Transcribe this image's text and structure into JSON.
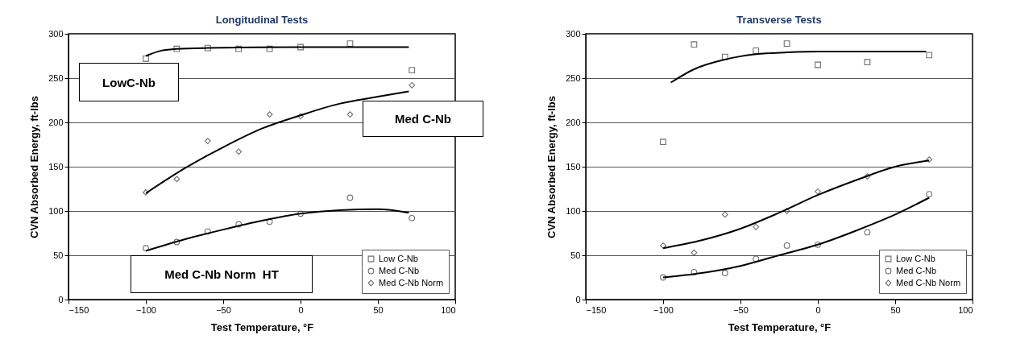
{
  "chart_data": [
    {
      "type": "scatter",
      "title": "Longitudinal Tests",
      "xlabel": "Test Temperature, °F",
      "ylabel": "CVN Absorbed Energy, ft-lbs",
      "xlim": [
        -150,
        100
      ],
      "xticks": [
        -150,
        -100,
        -50,
        0,
        50,
        100
      ],
      "ylim": [
        0,
        300
      ],
      "yticks": [
        0,
        50,
        100,
        150,
        200,
        250,
        300
      ],
      "grid": "y",
      "legend": "bottom right",
      "annotations": [
        "LowC-Nb",
        "Med C-Nb",
        "Med C-Nb Norm  HT"
      ],
      "series": [
        {
          "name": "Low C-Nb",
          "color": "#333333",
          "marker": "square",
          "x": [
            -100,
            -80,
            -60,
            -40,
            -20,
            0,
            32,
            72
          ],
          "values": [
            272,
            283,
            284,
            283,
            283,
            285,
            289,
            259
          ]
        },
        {
          "name": "Med C-Nb",
          "color": "#333333",
          "marker": "circle",
          "x": [
            -100,
            -80,
            -60,
            -40,
            -20,
            0,
            32,
            72
          ],
          "values": [
            58,
            65,
            77,
            85,
            88,
            97,
            115,
            92
          ]
        },
        {
          "name": "Med C-Nb Norm",
          "color": "#333333",
          "marker": "diamond",
          "x": [
            -100,
            -80,
            -60,
            -40,
            -20,
            0,
            32,
            72
          ],
          "values": [
            121,
            136,
            179,
            167,
            209,
            207,
            209,
            242
          ]
        },
        {
          "type": "line",
          "color": "#000000",
          "x": [
            -100,
            -90,
            -80,
            -60,
            0,
            70
          ],
          "values": [
            275,
            281,
            283,
            284,
            285,
            285
          ]
        },
        {
          "type": "line",
          "color": "#000000",
          "x": [
            -100,
            -75,
            -50,
            -25,
            0,
            25,
            50,
            70
          ],
          "values": [
            55,
            68,
            79,
            89,
            97,
            101,
            102,
            98
          ]
        },
        {
          "type": "line",
          "color": "#000000",
          "x": [
            -100,
            -75,
            -50,
            -25,
            0,
            25,
            50,
            70
          ],
          "values": [
            120,
            148,
            172,
            193,
            208,
            221,
            229,
            235
          ]
        }
      ]
    },
    {
      "type": "scatter",
      "title": "Transverse Tests",
      "xlabel": "Test Temperature, °F",
      "ylabel": "CVN Absorbed Energy, ft-lbs",
      "xlim": [
        -150,
        100
      ],
      "xticks": [
        -150,
        -100,
        -50,
        0,
        50,
        100
      ],
      "ylim": [
        0,
        300
      ],
      "yticks": [
        0,
        50,
        100,
        150,
        200,
        250,
        300
      ],
      "grid": "y",
      "legend": "bottom right",
      "series": [
        {
          "name": "Low C-Nb",
          "color": "#333333",
          "marker": "square",
          "x": [
            -100,
            -80,
            -60,
            -40,
            -20,
            0,
            32,
            72
          ],
          "values": [
            178,
            288,
            274,
            281,
            289,
            265,
            268,
            276
          ]
        },
        {
          "name": "Med C-Nb",
          "color": "#333333",
          "marker": "circle",
          "x": [
            -100,
            -80,
            -60,
            -40,
            -20,
            0,
            32,
            72
          ],
          "values": [
            25,
            31,
            30,
            46,
            61,
            62,
            76,
            119
          ]
        },
        {
          "name": "Med C-Nb Norm",
          "color": "#333333",
          "marker": "diamond",
          "x": [
            -100,
            -80,
            -60,
            -40,
            -20,
            0,
            32,
            72
          ],
          "values": [
            61,
            53,
            96,
            82,
            100,
            122,
            139,
            158
          ]
        },
        {
          "type": "line",
          "color": "#000000",
          "x": [
            -95,
            -80,
            -60,
            -40,
            -20,
            0,
            70
          ],
          "values": [
            245,
            260,
            271,
            277,
            279,
            280,
            280
          ]
        },
        {
          "type": "line",
          "color": "#000000",
          "x": [
            -100,
            -75,
            -50,
            -25,
            0,
            25,
            50,
            72
          ],
          "values": [
            25,
            30,
            38,
            50,
            62,
            78,
            96,
            115
          ]
        },
        {
          "type": "line",
          "color": "#000000",
          "x": [
            -100,
            -75,
            -50,
            -25,
            0,
            25,
            50,
            72
          ],
          "values": [
            58,
            67,
            80,
            98,
            118,
            135,
            150,
            157
          ]
        }
      ]
    }
  ]
}
